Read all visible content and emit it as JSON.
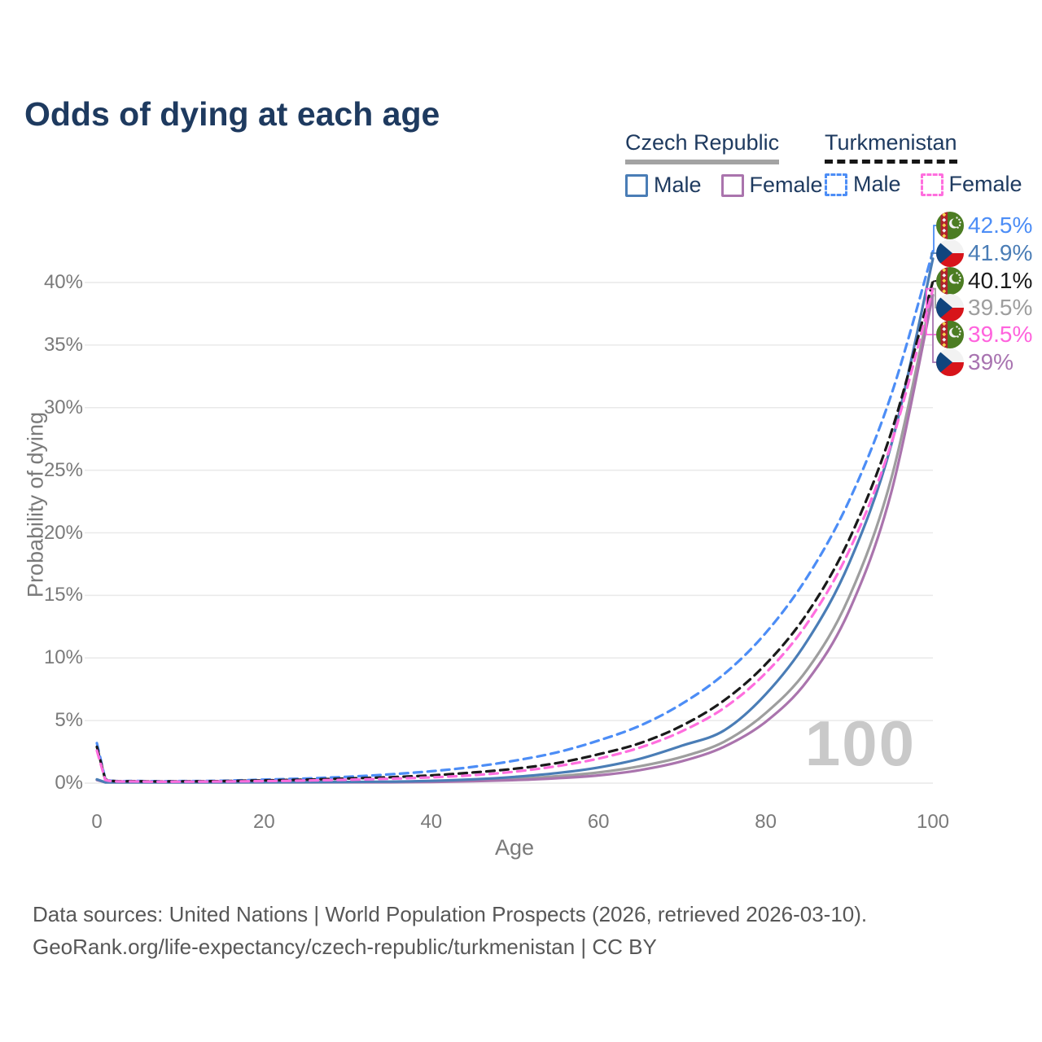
{
  "page": {
    "title": "Odds of dying at each age",
    "watermark": "100",
    "footer_line1": "Data sources: United Nations | World Population Prospects (2026, retrieved 2026-03-10).",
    "footer_line2": "GeoRank.org/life-expectancy/czech-republic/turkmenistan | CC BY"
  },
  "colors": {
    "title_text": "#1e3a5f",
    "axis_text": "#7a7a7a",
    "gridline": "#e9e9e9",
    "watermark": "#c9c9c9",
    "czech_underline": "#a3a3a3",
    "turkmenistan_underline": "#161616"
  },
  "legend": {
    "groups": [
      {
        "name": "Czech Republic",
        "line_style": "solid",
        "line_color": "#a3a3a3",
        "items": [
          {
            "label": "Male",
            "color": "#4a7db6",
            "dashed": false
          },
          {
            "label": "Female",
            "color": "#aa74ad",
            "dashed": false
          }
        ]
      },
      {
        "name": "Turkmenistan",
        "line_style": "dashed",
        "line_color": "#161616",
        "items": [
          {
            "label": "Male",
            "color": "#4c8df6",
            "dashed": true
          },
          {
            "label": "Female",
            "color": "#ff6ede",
            "dashed": true
          }
        ]
      }
    ]
  },
  "axes": {
    "x": {
      "label": "Age",
      "ticks": [
        0,
        20,
        40,
        60,
        80,
        100
      ],
      "range": [
        0,
        100
      ]
    },
    "y": {
      "label": "Probability of dying",
      "ticks": [
        "0%",
        "5%",
        "10%",
        "15%",
        "20%",
        "25%",
        "30%",
        "35%",
        "40%"
      ],
      "range_pct": [
        0,
        40
      ]
    }
  },
  "end_labels": [
    {
      "value": "42.5%",
      "flag": "turkmenistan",
      "series": "tm_male",
      "color": "#4c8df6"
    },
    {
      "value": "41.9%",
      "flag": "czech-republic",
      "series": "cz_male",
      "color": "#4a7db6"
    },
    {
      "value": "40.1%",
      "flag": "turkmenistan",
      "series": "tm_total",
      "color": "#1a1a1a"
    },
    {
      "value": "39.5%",
      "flag": "czech-republic",
      "series": "cz_total",
      "color": "#9e9e9e"
    },
    {
      "value": "39.5%",
      "flag": "turkmenistan",
      "series": "tm_female",
      "color": "#ff63dd"
    },
    {
      "value": "39%",
      "flag": "czech-republic",
      "series": "cz_female",
      "color": "#a873b0"
    }
  ],
  "chart_data": {
    "type": "line",
    "title": "Odds of dying at each age",
    "xlabel": "Age",
    "ylabel": "Probability of dying",
    "xlim": [
      0,
      100
    ],
    "ylim_pct": [
      0,
      44
    ],
    "grid": "horizontal-only",
    "legend_position": "top-right",
    "series": [
      {
        "id": "tm_male",
        "name": "Turkmenistan Male",
        "color": "#4c8df6",
        "dashed": true,
        "end_value_pct": 42.5,
        "points": [
          [
            0,
            3.2
          ],
          [
            1,
            0.32
          ],
          [
            5,
            0.17
          ],
          [
            10,
            0.16
          ],
          [
            15,
            0.19
          ],
          [
            20,
            0.28
          ],
          [
            25,
            0.37
          ],
          [
            30,
            0.51
          ],
          [
            35,
            0.7
          ],
          [
            40,
            0.95
          ],
          [
            45,
            1.3
          ],
          [
            50,
            1.8
          ],
          [
            55,
            2.45
          ],
          [
            60,
            3.4
          ],
          [
            65,
            4.6
          ],
          [
            70,
            6.35
          ],
          [
            75,
            8.7
          ],
          [
            80,
            12
          ],
          [
            85,
            16.5
          ],
          [
            90,
            22.6
          ],
          [
            95,
            31
          ],
          [
            100,
            42.5
          ]
        ]
      },
      {
        "id": "tm_total",
        "name": "Turkmenistan",
        "color": "#1a1a1a",
        "dashed": true,
        "end_value_pct": 40.1,
        "points": [
          [
            0,
            2.9
          ],
          [
            1,
            0.3
          ],
          [
            5,
            0.15
          ],
          [
            10,
            0.14
          ],
          [
            15,
            0.16
          ],
          [
            20,
            0.22
          ],
          [
            25,
            0.28
          ],
          [
            30,
            0.37
          ],
          [
            35,
            0.47
          ],
          [
            40,
            0.62
          ],
          [
            45,
            0.85
          ],
          [
            50,
            1.15
          ],
          [
            55,
            1.6
          ],
          [
            60,
            2.3
          ],
          [
            65,
            3.2
          ],
          [
            70,
            4.6
          ],
          [
            75,
            6.6
          ],
          [
            80,
            9.5
          ],
          [
            85,
            13.6
          ],
          [
            90,
            19.5
          ],
          [
            95,
            28
          ],
          [
            100,
            40.1
          ]
        ]
      },
      {
        "id": "tm_female",
        "name": "Turkmenistan Female",
        "color": "#ff6ede",
        "dashed": true,
        "end_value_pct": 39.5,
        "points": [
          [
            0,
            2.6
          ],
          [
            1,
            0.26
          ],
          [
            5,
            0.13
          ],
          [
            10,
            0.12
          ],
          [
            15,
            0.13
          ],
          [
            20,
            0.16
          ],
          [
            25,
            0.21
          ],
          [
            30,
            0.27
          ],
          [
            35,
            0.35
          ],
          [
            40,
            0.46
          ],
          [
            45,
            0.63
          ],
          [
            50,
            0.92
          ],
          [
            55,
            1.35
          ],
          [
            60,
            1.96
          ],
          [
            65,
            2.85
          ],
          [
            70,
            4.15
          ],
          [
            75,
            6
          ],
          [
            80,
            8.8
          ],
          [
            85,
            12.8
          ],
          [
            90,
            18.6
          ],
          [
            95,
            27.1
          ],
          [
            100,
            39.5
          ]
        ]
      },
      {
        "id": "cz_male",
        "name": "Czech Republic Male",
        "color": "#4a7db6",
        "dashed": false,
        "end_value_pct": 41.9,
        "points": [
          [
            0,
            0.3
          ],
          [
            1,
            0.04
          ],
          [
            5,
            0.02
          ],
          [
            10,
            0.02
          ],
          [
            15,
            0.04
          ],
          [
            20,
            0.07
          ],
          [
            25,
            0.08
          ],
          [
            30,
            0.09
          ],
          [
            35,
            0.12
          ],
          [
            40,
            0.18
          ],
          [
            45,
            0.3
          ],
          [
            50,
            0.5
          ],
          [
            55,
            0.8
          ],
          [
            60,
            1.25
          ],
          [
            65,
            1.95
          ],
          [
            70,
            3
          ],
          [
            75,
            4.2
          ],
          [
            80,
            7.1
          ],
          [
            85,
            11.4
          ],
          [
            90,
            17.6
          ],
          [
            95,
            27
          ],
          [
            100,
            41.9
          ]
        ]
      },
      {
        "id": "cz_total",
        "name": "Czech Republic",
        "color": "#9e9e9e",
        "dashed": false,
        "end_value_pct": 39.5,
        "points": [
          [
            0,
            0.28
          ],
          [
            1,
            0.03
          ],
          [
            5,
            0.02
          ],
          [
            10,
            0.02
          ],
          [
            15,
            0.03
          ],
          [
            20,
            0.05
          ],
          [
            25,
            0.06
          ],
          [
            30,
            0.07
          ],
          [
            35,
            0.09
          ],
          [
            40,
            0.13
          ],
          [
            45,
            0.21
          ],
          [
            50,
            0.33
          ],
          [
            55,
            0.55
          ],
          [
            60,
            0.85
          ],
          [
            65,
            1.35
          ],
          [
            70,
            2.1
          ],
          [
            75,
            3.3
          ],
          [
            80,
            5.6
          ],
          [
            85,
            9.1
          ],
          [
            90,
            14.9
          ],
          [
            95,
            24.3
          ],
          [
            100,
            39.5
          ]
        ]
      },
      {
        "id": "cz_female",
        "name": "Czech Republic Female",
        "color": "#aa74ad",
        "dashed": false,
        "end_value_pct": 39,
        "points": [
          [
            0,
            0.25
          ],
          [
            1,
            0.03
          ],
          [
            5,
            0.015
          ],
          [
            10,
            0.015
          ],
          [
            15,
            0.02
          ],
          [
            20,
            0.03
          ],
          [
            25,
            0.035
          ],
          [
            30,
            0.045
          ],
          [
            35,
            0.06
          ],
          [
            40,
            0.09
          ],
          [
            45,
            0.15
          ],
          [
            50,
            0.24
          ],
          [
            55,
            0.39
          ],
          [
            60,
            0.62
          ],
          [
            65,
            1.05
          ],
          [
            70,
            1.75
          ],
          [
            75,
            2.9
          ],
          [
            80,
            4.9
          ],
          [
            85,
            8.2
          ],
          [
            90,
            13.8
          ],
          [
            95,
            23.2
          ],
          [
            100,
            39
          ]
        ]
      }
    ]
  }
}
